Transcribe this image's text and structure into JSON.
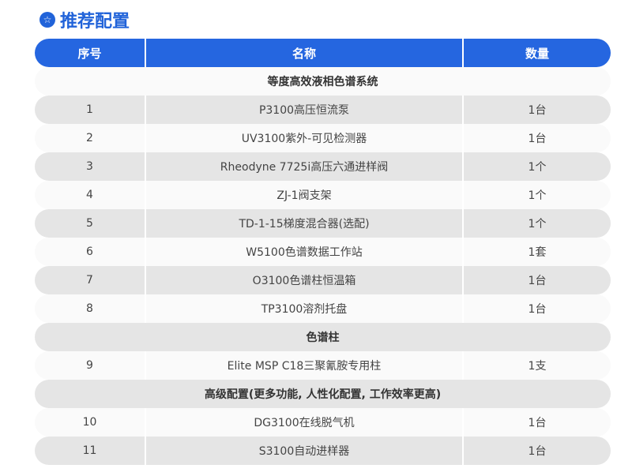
{
  "title": "推荐配置",
  "accent": "#2566e0",
  "headers": [
    "序号",
    "名称",
    "数量"
  ],
  "rows": [
    {
      "type": "section",
      "label": "等度高效液相色谱系统"
    },
    {
      "type": "item",
      "no": "1",
      "name": "P3100高压恒流泵",
      "qty": "1台"
    },
    {
      "type": "item",
      "no": "2",
      "name": "UV3100紫外-可见检测器",
      "qty": "1台"
    },
    {
      "type": "item",
      "no": "3",
      "name": "Rheodyne 7725i高压六通进样阀",
      "qty": "1个"
    },
    {
      "type": "item",
      "no": "4",
      "name": "ZJ-1阀支架",
      "qty": "1个"
    },
    {
      "type": "item",
      "no": "5",
      "name": "TD-1-15梯度混合器(选配)",
      "qty": "1个"
    },
    {
      "type": "item",
      "no": "6",
      "name": "W5100色谱数据工作站",
      "qty": "1套"
    },
    {
      "type": "item",
      "no": "7",
      "name": "O3100色谱柱恒温箱",
      "qty": "1台"
    },
    {
      "type": "item",
      "no": "8",
      "name": "TP3100溶剂托盘",
      "qty": "1台"
    },
    {
      "type": "section",
      "label": "色谱柱"
    },
    {
      "type": "item",
      "no": "9",
      "name": "Elite MSP C18三聚氰胺专用柱",
      "qty": "1支"
    },
    {
      "type": "section",
      "label": "高级配置(更多功能, 人性化配置, 工作效率更高)"
    },
    {
      "type": "item",
      "no": "10",
      "name": "DG3100在线脱气机",
      "qty": "1台"
    },
    {
      "type": "item",
      "no": "11",
      "name": "S3100自动进样器",
      "qty": "1台"
    }
  ]
}
